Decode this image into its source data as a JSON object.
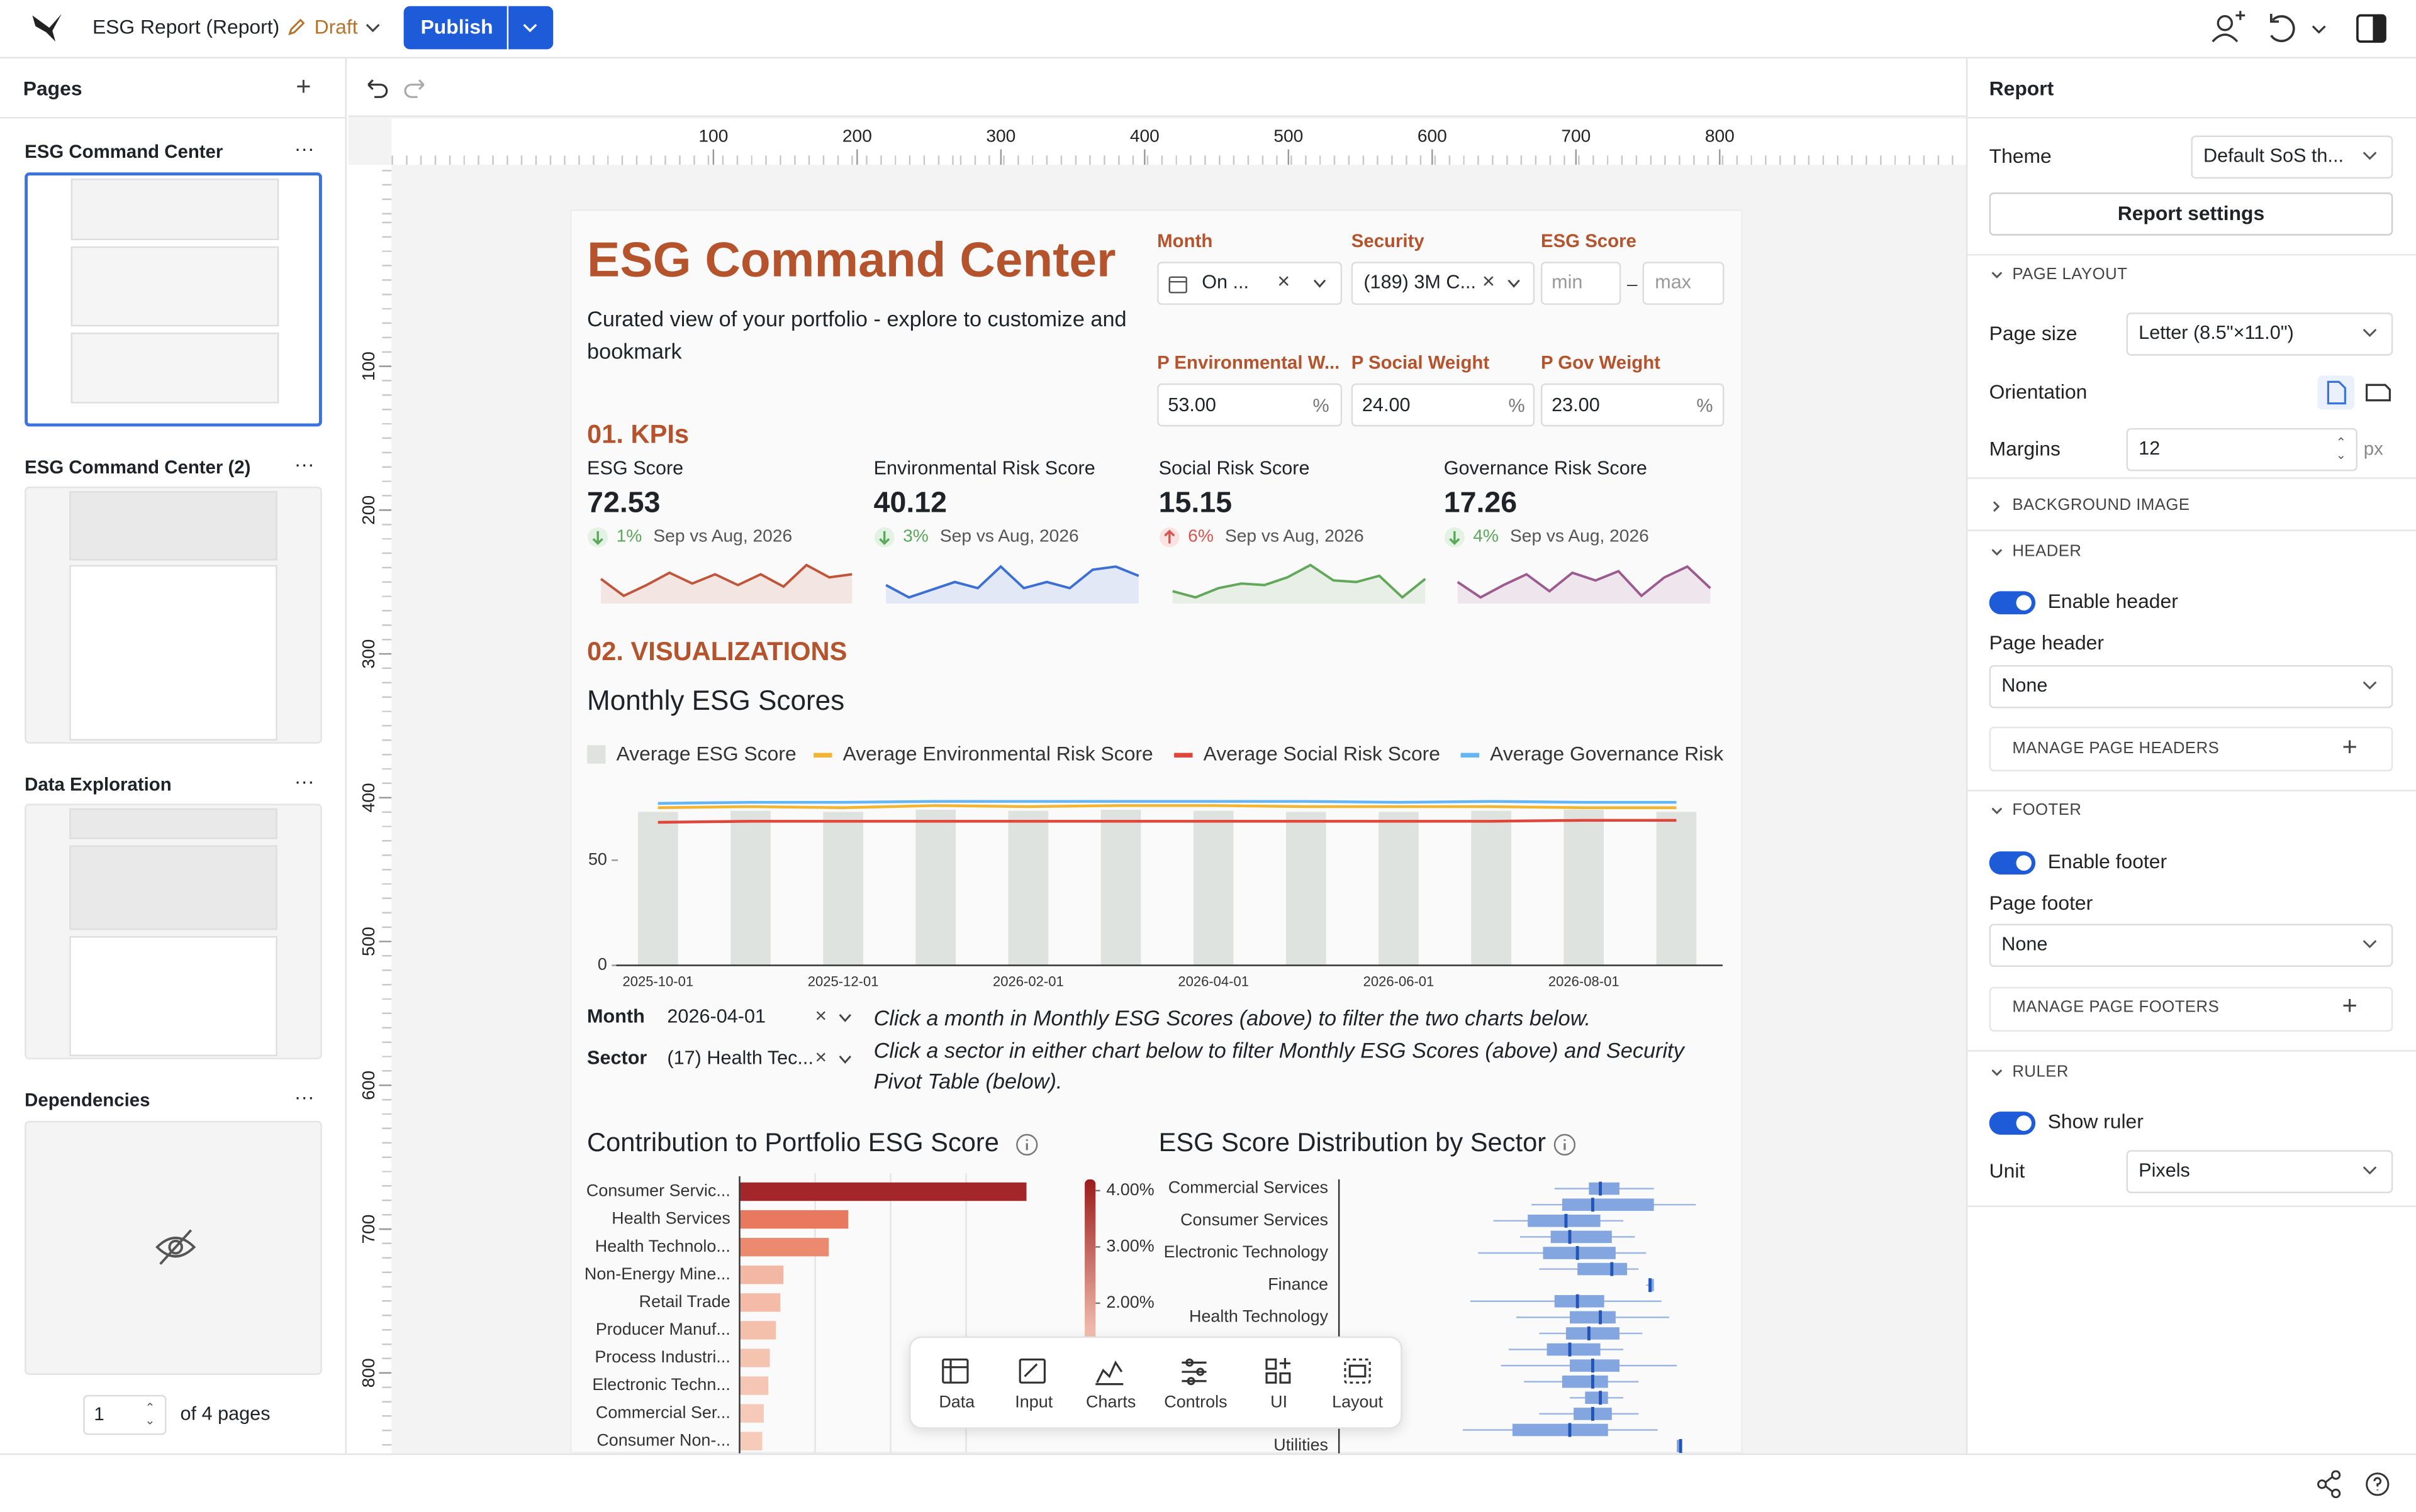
{
  "header": {
    "app_title": "ESG Report (Report)",
    "status": "Draft",
    "publish": "Publish"
  },
  "pages_panel": {
    "title": "Pages",
    "pages": [
      "ESG Command Center",
      "ESG Command Center (2)",
      "Data Exploration",
      "Dependencies"
    ],
    "page_number": "1",
    "page_count": "of 4 pages"
  },
  "ruler": {
    "xticks": [
      100,
      200,
      300,
      400,
      500,
      600,
      700,
      800
    ],
    "yticks": [
      100,
      200,
      300,
      400,
      500,
      600,
      700,
      800
    ]
  },
  "report": {
    "title": "ESG Command Center",
    "subtitle": "Curated view of your portfolio - explore to customize and bookmark",
    "filters": {
      "month_label": "Month",
      "month_value": "On ...",
      "security_label": "Security",
      "security_value": "(189) 3M C...",
      "esg_label": "ESG Score",
      "min_placeholder": "min",
      "max_placeholder": "max"
    },
    "weights": [
      {
        "label": "P Environmental W...",
        "value": "53.00"
      },
      {
        "label": "P Social Weight",
        "value": "24.00"
      },
      {
        "label": "P Gov Weight",
        "value": "23.00"
      }
    ],
    "percent": "%",
    "kpi_heading": "01. KPIs",
    "kpis": [
      {
        "name": "ESG Score",
        "value": "72.53",
        "delta": "1%",
        "period": "Sep vs Aug, 2026",
        "trend": "down"
      },
      {
        "name": "Environmental Risk Score",
        "value": "40.12",
        "delta": "3%",
        "period": "Sep vs Aug, 2026",
        "trend": "down"
      },
      {
        "name": "Social Risk Score",
        "value": "15.15",
        "delta": "6%",
        "period": "Sep vs Aug, 2026",
        "trend": "up"
      },
      {
        "name": "Governance Risk Score",
        "value": "17.26",
        "delta": "4%",
        "period": "Sep vs Aug, 2026",
        "trend": "down"
      }
    ],
    "viz_heading": "02. VISUALIZATIONS",
    "lower_filters": {
      "month_label": "Month",
      "month_value": "2026-04-01",
      "sector_label": "Sector",
      "sector_value": "(17) Health Tec..."
    },
    "instructions": [
      "Click a month in  Monthly ESG Scores (above) to filter the two charts below.",
      "Click a sector in either chart below to filter Monthly ESG Scores (above) and Security Pivot Table (below)."
    ]
  },
  "chart_data": [
    {
      "type": "sparkline",
      "values": [
        16,
        5,
        12,
        20,
        13,
        19,
        12,
        19,
        11,
        25,
        17,
        19
      ],
      "ylim": [
        0,
        30
      ],
      "color": "#c0553a"
    },
    {
      "type": "sparkline",
      "values": [
        12,
        4,
        9,
        14,
        10,
        24,
        10,
        14,
        10,
        22,
        24,
        18
      ],
      "ylim": [
        0,
        30
      ],
      "color": "#3b6fd4"
    },
    {
      "type": "sparkline",
      "values": [
        8,
        4,
        10,
        13,
        12,
        17,
        25,
        15,
        14,
        18,
        4,
        16
      ],
      "ylim": [
        0,
        30
      ],
      "color": "#62a85a"
    },
    {
      "type": "sparkline",
      "values": [
        14,
        4,
        12,
        19,
        8,
        20,
        15,
        21,
        5,
        17,
        24,
        10
      ],
      "ylim": [
        0,
        30
      ],
      "color": "#9c5b8f"
    },
    {
      "type": "combo",
      "title": "Monthly ESG Scores",
      "categories": [
        "2025-10-01",
        null,
        "2025-12-01",
        null,
        "2026-02-01",
        null,
        "2026-04-01",
        null,
        "2026-06-01",
        null,
        "2026-08-01",
        null
      ],
      "series": [
        {
          "name": "Average ESG Score",
          "type": "bar",
          "color": "#dfe3df",
          "values": [
            73,
            73.5,
            73,
            74,
            73.5,
            74,
            73.5,
            73,
            73,
            73.5,
            74,
            73
          ]
        },
        {
          "name": "Average Environmental Risk Score",
          "type": "line",
          "color": "#f2b431",
          "values": [
            75,
            75.5,
            75,
            76,
            75.5,
            76,
            76,
            75.5,
            75.5,
            75.5,
            75,
            75
          ]
        },
        {
          "name": "Average Social Risk Score",
          "type": "line",
          "color": "#e0453a",
          "values": [
            68,
            68.5,
            68.5,
            68.5,
            68.5,
            68.5,
            68.5,
            68.5,
            68.5,
            68.5,
            69,
            69
          ]
        },
        {
          "name": "Average Governance Risk Score",
          "type": "line",
          "color": "#64b5f6",
          "values": [
            77,
            77.5,
            77.5,
            78,
            78,
            78,
            78,
            78,
            77.5,
            78,
            77.5,
            77.5
          ]
        }
      ],
      "ylim": [
        0,
        82
      ],
      "yticks": [
        0,
        50
      ]
    },
    {
      "type": "hbar",
      "title": "Contribution to Portfolio ESG Score",
      "categories": [
        "Consumer Servic...",
        "Health Services",
        "Health Technolo...",
        "Non-Energy Mine...",
        "Retail Trade",
        "Producer Manuf...",
        "Process Industri...",
        "Electronic Techn...",
        "Commercial Ser...",
        "Consumer Non-..."
      ],
      "values": [
        190,
        72,
        59,
        29,
        27,
        24,
        20,
        19,
        16,
        15
      ],
      "colors": [
        "#a3262a",
        "#e8795f",
        "#ec8a70",
        "#f3b8a3",
        "#f4bca8",
        "#f4c0ac",
        "#f5c4b1",
        "#f5c6b4",
        "#f6c9b8",
        "#f6cbba"
      ],
      "xlim": [
        0,
        200
      ],
      "xticks": [
        50,
        100,
        150
      ],
      "grid": true
    },
    {
      "type": "box",
      "title": "ESG Score Distribution by Sector",
      "categories": [
        "Commercial Services",
        null,
        "Consumer Services",
        null,
        "Electronic Technology",
        null,
        "Finance",
        null,
        "Health Technology",
        null,
        null,
        null,
        null,
        null,
        null,
        null,
        "Utilities"
      ],
      "min": [
        56,
        50,
        40,
        47,
        36,
        52,
        80,
        34,
        46,
        52,
        44,
        42,
        48,
        60,
        52,
        32,
        88
      ],
      "q1": [
        65,
        58,
        49,
        55,
        53,
        62,
        81,
        56,
        60,
        59,
        54,
        60,
        58,
        64,
        61,
        45,
        88
      ],
      "median": [
        68,
        66,
        59,
        60,
        62,
        71,
        81,
        62,
        68,
        65,
        60,
        66,
        66,
        68,
        66,
        60,
        89
      ],
      "q3": [
        73,
        82,
        68,
        71,
        72,
        75,
        82,
        69,
        72,
        73,
        68,
        73,
        70,
        70,
        71,
        70,
        89
      ],
      "max": [
        82,
        93,
        74,
        77,
        80,
        78,
        82,
        84,
        86,
        79,
        74,
        88,
        78,
        74,
        78,
        83,
        89
      ],
      "xlim": [
        0,
        100
      ],
      "color": "#84a6e0",
      "median_color": "#2255b8",
      "color_scale": {
        "lim": [
          1.3,
          4.2
        ],
        "ticks": [
          {
            "value": 4,
            "label": "4.00%"
          },
          {
            "value": 3,
            "label": "3.00%"
          },
          {
            "value": 2,
            "label": "2.00%"
          }
        ]
      }
    }
  ],
  "toolbar": [
    "Data",
    "Input",
    "Charts",
    "Controls",
    "UI",
    "Layout"
  ],
  "settings": {
    "title": "Report",
    "theme_label": "Theme",
    "theme_value": "Default SoS th...",
    "report_settings": "Report settings",
    "page_layout": "PAGE LAYOUT",
    "page_size_label": "Page size",
    "page_size_value": "Letter (8.5\"×11.0\")",
    "orientation_label": "Orientation",
    "margins_label": "Margins",
    "margins_value": "12",
    "margins_unit": "px",
    "background_image": "BACKGROUND IMAGE",
    "header": "HEADER",
    "enable_header": "Enable header",
    "page_header_label": "Page header",
    "page_header_value": "None",
    "manage_headers": "MANAGE PAGE HEADERS",
    "footer": "FOOTER",
    "enable_footer": "Enable footer",
    "page_footer_label": "Page footer",
    "page_footer_value": "None",
    "manage_footers": "MANAGE PAGE FOOTERS",
    "ruler": "RULER",
    "show_ruler": "Show ruler",
    "unit_label": "Unit",
    "unit_value": "Pixels"
  }
}
